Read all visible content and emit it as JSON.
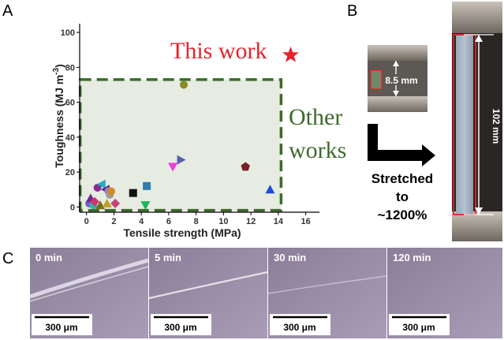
{
  "panels": {
    "a": "A",
    "b": "B",
    "c": "C"
  },
  "chart_data": {
    "type": "scatter",
    "xlabel": "Tensile strength (MPa)",
    "ylabel_main": "Toughness (MJ m",
    "ylabel_sup": "-3",
    "ylabel_close": ")",
    "xlim": [
      -0.5,
      17
    ],
    "ylim": [
      -3,
      105
    ],
    "xticks": [
      0,
      2,
      4,
      6,
      8,
      10,
      12,
      14,
      16
    ],
    "yticks": [
      0,
      20,
      40,
      60,
      80,
      100
    ],
    "annotations": {
      "this_work": "This work",
      "other_line1": "Other",
      "other_line2": "works"
    },
    "this_work_point": {
      "x": 14.9,
      "y": 87,
      "color": "#e8212b",
      "shape": "star"
    },
    "other_region": {
      "x": [
        0,
        14.2
      ],
      "y": [
        -1,
        73
      ]
    },
    "points": [
      {
        "x": 0.2,
        "y": 2,
        "color": "#7b5cc6",
        "shape": "circle"
      },
      {
        "x": 0.3,
        "y": 5,
        "color": "#6a2d91",
        "shape": "triangle-up"
      },
      {
        "x": 0.5,
        "y": 1,
        "color": "#2bb8a8",
        "shape": "circle"
      },
      {
        "x": 0.6,
        "y": 3,
        "color": "#d1346f",
        "shape": "diamond"
      },
      {
        "x": 0.8,
        "y": 11,
        "color": "#8c2c8c",
        "shape": "circle"
      },
      {
        "x": 1.0,
        "y": 1,
        "color": "#7a6a1e",
        "shape": "triangle-up"
      },
      {
        "x": 1.1,
        "y": 13,
        "color": "#2ea7c7",
        "shape": "triangle-left"
      },
      {
        "x": 1.4,
        "y": 10,
        "color": "#4b2a8a",
        "shape": "triangle-left"
      },
      {
        "x": 1.5,
        "y": 2,
        "color": "#bfa023",
        "shape": "triangle-up"
      },
      {
        "x": 1.6,
        "y": 9,
        "color": "#9a7ad0",
        "shape": "circle"
      },
      {
        "x": 1.7,
        "y": 7,
        "color": "#9b9b9b",
        "shape": "circle"
      },
      {
        "x": 1.8,
        "y": 9,
        "color": "#d08a2a",
        "shape": "circle"
      },
      {
        "x": 2.1,
        "y": 2,
        "color": "#c8407a",
        "shape": "diamond"
      },
      {
        "x": 3.4,
        "y": 8,
        "color": "#111111",
        "shape": "square"
      },
      {
        "x": 4.3,
        "y": 1,
        "color": "#16b85a",
        "shape": "triangle-down"
      },
      {
        "x": 4.4,
        "y": 12,
        "color": "#2f7db0",
        "shape": "square"
      },
      {
        "x": 6.3,
        "y": 23,
        "color": "#f03fd3",
        "shape": "triangle-down"
      },
      {
        "x": 6.9,
        "y": 27,
        "color": "#5b5fa8",
        "shape": "triangle-right"
      },
      {
        "x": 7.1,
        "y": 70,
        "color": "#8c8a22",
        "shape": "circle"
      },
      {
        "x": 11.6,
        "y": 23,
        "color": "#7a1f25",
        "shape": "pentagon"
      },
      {
        "x": 13.4,
        "y": 10,
        "color": "#1f4bd8",
        "shape": "triangle-up"
      }
    ]
  },
  "panel_b": {
    "small_length": "8.5 mm",
    "large_length": "102 mm",
    "stretched_line1": "Stretched",
    "stretched_line2": "to",
    "stretched_line3": "~1200%"
  },
  "panel_c": {
    "frames": [
      {
        "time": "0 min",
        "scale": "300 μm"
      },
      {
        "time": "5 min",
        "scale": "300 μm"
      },
      {
        "time": "30 min",
        "scale": "300 μm"
      },
      {
        "time": "120 min",
        "scale": "300 μm"
      }
    ]
  }
}
